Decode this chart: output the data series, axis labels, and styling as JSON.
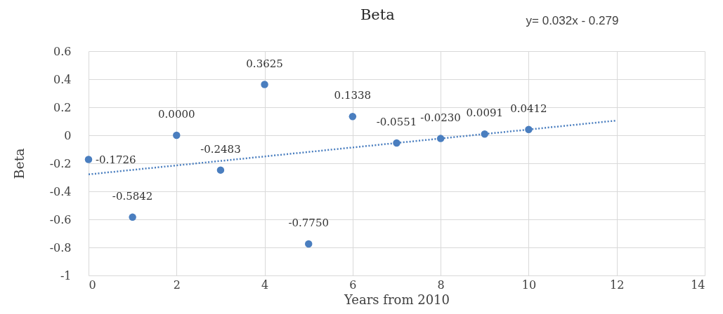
{
  "chart_data": {
    "type": "scatter",
    "title": "Beta",
    "xlabel": "Years from 2010",
    "ylabel": "Beta",
    "annotations": [
      "y= 0.032x - 0.279"
    ],
    "series": [
      {
        "type": "line",
        "color": "#4a7ebf",
        "x": [
          0,
          12
        ],
        "values": [
          -0.279,
          0.105
        ],
        "line_style": "dotted",
        "marker": "none"
      },
      {
        "color": "#4a7ebf",
        "x": [
          0,
          1,
          2,
          3,
          4,
          5,
          6,
          7,
          8,
          9,
          10
        ],
        "values": [
          -0.1726,
          -0.5842,
          0,
          -0.2483,
          0.3625,
          -0.775,
          0.1338,
          -0.0551,
          -0.023,
          0.0091,
          0.0412
        ],
        "value_labels": [
          "-0.1726",
          "-0.5842",
          "0.0000",
          "-0.2483",
          "0.3625",
          "-0.7750",
          "0.1338",
          "-0.0551",
          "-0.0230",
          "0.0091",
          "0.0412"
        ]
      }
    ],
    "marker": "circle",
    "xlim": [
      0,
      14
    ],
    "xticks": [
      0,
      2,
      4,
      6,
      8,
      10,
      12,
      14
    ],
    "ylim": [
      -1,
      0.6
    ],
    "yticks": [
      -1,
      -0.8,
      -0.6,
      -0.4,
      -0.2,
      0,
      0.2,
      0.4,
      0.6
    ],
    "grid": true
  }
}
